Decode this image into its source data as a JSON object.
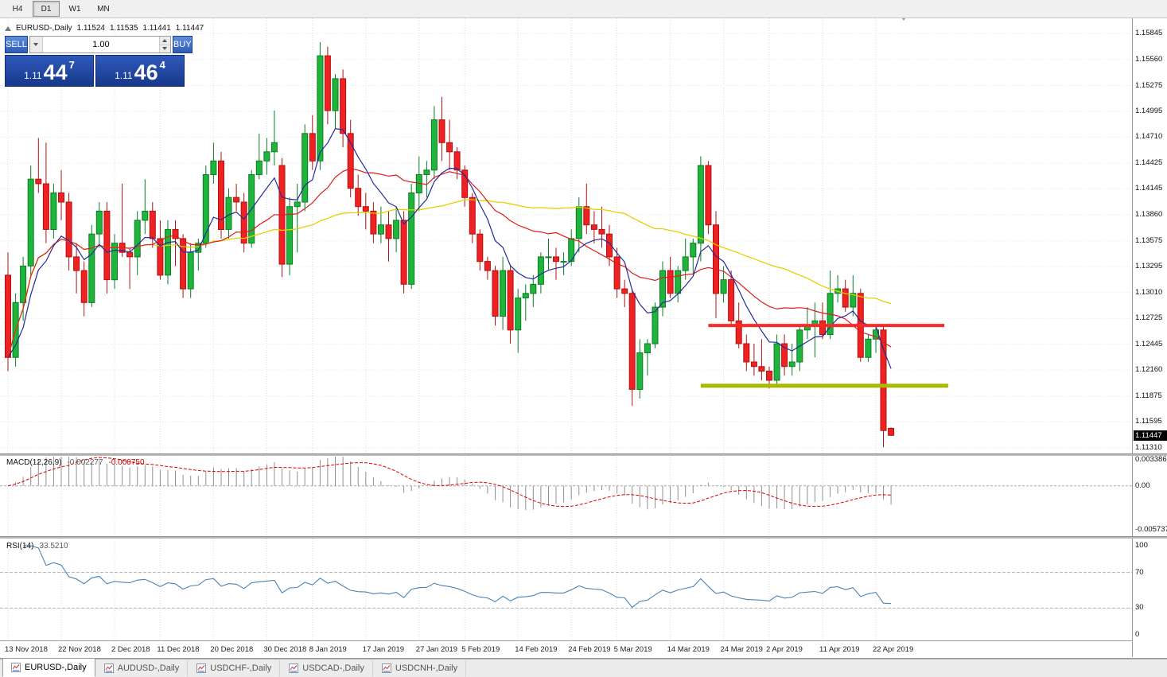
{
  "toolbar": {
    "timeframes": [
      {
        "label": "H4",
        "active": false
      },
      {
        "label": "D1",
        "active": true
      },
      {
        "label": "W1",
        "active": false
      },
      {
        "label": "MN",
        "active": false
      }
    ]
  },
  "header": {
    "symbol_title": "EURUSD-,Daily",
    "open": "1.11524",
    "high": "1.11535",
    "low": "1.11441",
    "close": "1.11447"
  },
  "trade_panel": {
    "sell_label": "SELL",
    "buy_label": "BUY",
    "volume": "1.00",
    "sell_price": {
      "prefix": "1.11",
      "big": "44",
      "sup": "7"
    },
    "buy_price": {
      "prefix": "1.11",
      "big": "46",
      "sup": "4"
    }
  },
  "icons": {
    "collapse": "triangle-up",
    "volume_dropdown": "triangle-down",
    "spin_up": "triangle-up",
    "spin_down": "triangle-down",
    "chart_shift": "triangle-down",
    "tab_icon": "mini-chart"
  },
  "price_scale": {
    "labels": [
      "1.15845",
      "1.15560",
      "1.15275",
      "1.14995",
      "1.14710",
      "1.14425",
      "1.14145",
      "1.13860",
      "1.13575",
      "1.13295",
      "1.13010",
      "1.12725",
      "1.12445",
      "1.12160",
      "1.11875",
      "1.11595",
      "1.11310"
    ],
    "current_price": "1.11447"
  },
  "macd_panel": {
    "label": "MACD(12,26,9)",
    "value": "-0.002277",
    "signal_value": "-0.000750",
    "scale": [
      "0.003386",
      "0.00",
      "-0.005737"
    ]
  },
  "rsi_panel": {
    "label": "RSI(14)",
    "value": "33.5210",
    "scale": [
      "100",
      "70",
      "30",
      "0"
    ]
  },
  "time_axis": {
    "ticks": [
      {
        "label": "13 Nov 2018",
        "index": 0
      },
      {
        "label": "22 Nov 2018",
        "index": 7
      },
      {
        "label": "2 Dec 2018",
        "index": 14
      },
      {
        "label": "11 Dec 2018",
        "index": 20
      },
      {
        "label": "20 Dec 2018",
        "index": 27
      },
      {
        "label": "30 Dec 2018",
        "index": 34
      },
      {
        "label": "8 Jan 2019",
        "index": 40
      },
      {
        "label": "17 Jan 2019",
        "index": 47
      },
      {
        "label": "27 Jan 2019",
        "index": 54
      },
      {
        "label": "5 Feb 2019",
        "index": 60
      },
      {
        "label": "14 Feb 2019",
        "index": 67
      },
      {
        "label": "24 Feb 2019",
        "index": 74
      },
      {
        "label": "5 Mar 2019",
        "index": 80
      },
      {
        "label": "14 Mar 2019",
        "index": 87
      },
      {
        "label": "24 Mar 2019",
        "index": 94
      },
      {
        "label": "2 Apr 2019",
        "index": 100
      },
      {
        "label": "11 Apr 2019",
        "index": 107
      },
      {
        "label": "22 Apr 2019",
        "index": 114
      }
    ]
  },
  "tabs": [
    {
      "label": "EURUSD-,Daily",
      "active": true
    },
    {
      "label": "AUDUSD-,Daily",
      "active": false
    },
    {
      "label": "USDCHF-,Daily",
      "active": false
    },
    {
      "label": "USDCAD-,Daily",
      "active": false
    },
    {
      "label": "USDCNH-,Daily",
      "active": false
    }
  ],
  "colors": {
    "up_fill": "#1fb53c",
    "up_stroke": "#0b7d22",
    "down_fill": "#ee2222",
    "down_stroke": "#b31111",
    "ma_fast": "#232a9c",
    "ma_mid": "#dd1d1d",
    "ma_slow": "#e8cf00",
    "macd_hist": "#909090",
    "macd_signal": "#dd0000",
    "rsi_line": "#4a82b4",
    "grid": "#dcdcdc",
    "hgrid": "#e6e6e6",
    "level_dash": "#b4b4b4",
    "trade_blue": "#3566c4",
    "trade_dark_blue": "#1c3f9c",
    "support_resistance_red": "#ff2626",
    "support_resistance_olive": "#a9b800",
    "tag_bg": "#000000"
  },
  "chart_data": {
    "type": "candlestick",
    "symbol": "EURUSD",
    "timeframe": "Daily",
    "y_axis": {
      "min": 1.1131,
      "max": 1.15845
    },
    "overlays": {
      "fast_ema": 8,
      "mid_sma": 20,
      "slow_sma": 50
    },
    "indicators": {
      "macd": {
        "fast": 12,
        "slow": 26,
        "signal": 9,
        "range": [
          -0.005737,
          0.003386
        ]
      },
      "rsi": {
        "period": 14,
        "levels": [
          70,
          30
        ],
        "range": [
          0,
          100
        ]
      }
    },
    "hlines": [
      {
        "price": 1.1265,
        "from_index": 92,
        "to_index": 123,
        "color": "#ff2626",
        "width": 4
      },
      {
        "price": 1.1199,
        "from_index": 91,
        "to_index": 123.5,
        "color": "#a9b800",
        "width": 5
      }
    ],
    "candles": [
      [
        1.132,
        1.1345,
        1.1215,
        1.123
      ],
      [
        1.123,
        1.13,
        1.122,
        1.129
      ],
      [
        1.129,
        1.134,
        1.127,
        1.133
      ],
      [
        1.133,
        1.144,
        1.132,
        1.1425
      ],
      [
        1.1425,
        1.147,
        1.141,
        1.142
      ],
      [
        1.142,
        1.1465,
        1.1355,
        1.137
      ],
      [
        1.137,
        1.142,
        1.136,
        1.141
      ],
      [
        1.141,
        1.1435,
        1.138,
        1.14
      ],
      [
        1.14,
        1.141,
        1.1325,
        1.134
      ],
      [
        1.134,
        1.1355,
        1.13,
        1.1325
      ],
      [
        1.1325,
        1.1335,
        1.1275,
        1.129
      ],
      [
        1.129,
        1.1375,
        1.1285,
        1.1365
      ],
      [
        1.1365,
        1.14,
        1.135,
        1.139
      ],
      [
        1.139,
        1.14,
        1.13,
        1.1315
      ],
      [
        1.1315,
        1.1365,
        1.1305,
        1.1355
      ],
      [
        1.1355,
        1.142,
        1.134,
        1.1345
      ],
      [
        1.1345,
        1.135,
        1.1305,
        1.134
      ],
      [
        1.134,
        1.139,
        1.132,
        1.138
      ],
      [
        1.138,
        1.1425,
        1.1365,
        1.139
      ],
      [
        1.139,
        1.14,
        1.135,
        1.136
      ],
      [
        1.136,
        1.138,
        1.1315,
        1.132
      ],
      [
        1.132,
        1.138,
        1.131,
        1.137
      ],
      [
        1.137,
        1.138,
        1.133,
        1.136
      ],
      [
        1.136,
        1.1365,
        1.1295,
        1.1305
      ],
      [
        1.1305,
        1.1355,
        1.1295,
        1.1345
      ],
      [
        1.1345,
        1.136,
        1.1325,
        1.1355
      ],
      [
        1.1355,
        1.144,
        1.135,
        1.143
      ],
      [
        1.143,
        1.1465,
        1.142,
        1.1445
      ],
      [
        1.1445,
        1.1455,
        1.136,
        1.137
      ],
      [
        1.137,
        1.1415,
        1.136,
        1.1405
      ],
      [
        1.1405,
        1.142,
        1.139,
        1.14
      ],
      [
        1.14,
        1.141,
        1.1345,
        1.1355
      ],
      [
        1.1355,
        1.1435,
        1.135,
        1.143
      ],
      [
        1.143,
        1.1475,
        1.1425,
        1.1445
      ],
      [
        1.1445,
        1.147,
        1.143,
        1.1455
      ],
      [
        1.1455,
        1.15,
        1.144,
        1.1465
      ],
      [
        1.144,
        1.1448,
        1.1318,
        1.1332
      ],
      [
        1.1332,
        1.1405,
        1.132,
        1.1395
      ],
      [
        1.1395,
        1.142,
        1.1345,
        1.14
      ],
      [
        1.14,
        1.1485,
        1.139,
        1.1475
      ],
      [
        1.1475,
        1.1495,
        1.1435,
        1.1445
      ],
      [
        1.1445,
        1.1575,
        1.1435,
        1.156
      ],
      [
        1.156,
        1.157,
        1.1485,
        1.15
      ],
      [
        1.15,
        1.154,
        1.148,
        1.1535
      ],
      [
        1.1535,
        1.1545,
        1.146,
        1.1475
      ],
      [
        1.1475,
        1.149,
        1.1405,
        1.1415
      ],
      [
        1.1415,
        1.143,
        1.1385,
        1.1395
      ],
      [
        1.1395,
        1.141,
        1.137,
        1.139
      ],
      [
        1.139,
        1.14,
        1.1355,
        1.1365
      ],
      [
        1.1365,
        1.1395,
        1.1355,
        1.1375
      ],
      [
        1.1375,
        1.139,
        1.1335,
        1.136
      ],
      [
        1.136,
        1.1395,
        1.1345,
        1.138
      ],
      [
        1.138,
        1.139,
        1.13,
        1.131
      ],
      [
        1.131,
        1.142,
        1.1305,
        1.141
      ],
      [
        1.141,
        1.145,
        1.139,
        1.143
      ],
      [
        1.143,
        1.1445,
        1.1405,
        1.1435
      ],
      [
        1.1435,
        1.1505,
        1.1425,
        1.149
      ],
      [
        1.149,
        1.1515,
        1.1445,
        1.1465
      ],
      [
        1.1465,
        1.149,
        1.1435,
        1.1455
      ],
      [
        1.1455,
        1.146,
        1.1425,
        1.1435
      ],
      [
        1.1435,
        1.144,
        1.1395,
        1.1405
      ],
      [
        1.1405,
        1.141,
        1.1355,
        1.1365
      ],
      [
        1.1365,
        1.137,
        1.1325,
        1.1335
      ],
      [
        1.1335,
        1.134,
        1.1315,
        1.1325
      ],
      [
        1.1325,
        1.133,
        1.1265,
        1.1275
      ],
      [
        1.1275,
        1.134,
        1.126,
        1.1325
      ],
      [
        1.1325,
        1.133,
        1.1245,
        1.126
      ],
      [
        1.126,
        1.1305,
        1.1235,
        1.1295
      ],
      [
        1.1295,
        1.131,
        1.127,
        1.13
      ],
      [
        1.13,
        1.132,
        1.1285,
        1.131
      ],
      [
        1.131,
        1.1345,
        1.13,
        1.134
      ],
      [
        1.134,
        1.136,
        1.1325,
        1.134
      ],
      [
        1.134,
        1.135,
        1.1315,
        1.1335
      ],
      [
        1.1335,
        1.1345,
        1.132,
        1.1335
      ],
      [
        1.1335,
        1.137,
        1.133,
        1.136
      ],
      [
        1.136,
        1.1405,
        1.1345,
        1.1395
      ],
      [
        1.1395,
        1.142,
        1.1365,
        1.1375
      ],
      [
        1.1375,
        1.139,
        1.1355,
        1.137
      ],
      [
        1.137,
        1.1395,
        1.135,
        1.1365
      ],
      [
        1.1365,
        1.1375,
        1.133,
        1.134
      ],
      [
        1.134,
        1.135,
        1.1295,
        1.1305
      ],
      [
        1.1305,
        1.1315,
        1.1285,
        1.13
      ],
      [
        1.13,
        1.1305,
        1.1177,
        1.1195
      ],
      [
        1.1195,
        1.125,
        1.1185,
        1.1235
      ],
      [
        1.1235,
        1.125,
        1.121,
        1.1245
      ],
      [
        1.1245,
        1.129,
        1.124,
        1.1285
      ],
      [
        1.1285,
        1.1335,
        1.1275,
        1.1325
      ],
      [
        1.1325,
        1.134,
        1.1295,
        1.13
      ],
      [
        1.13,
        1.133,
        1.129,
        1.1325
      ],
      [
        1.1325,
        1.136,
        1.1315,
        1.134
      ],
      [
        1.134,
        1.136,
        1.132,
        1.1355
      ],
      [
        1.1355,
        1.145,
        1.1335,
        1.144
      ],
      [
        1.144,
        1.1445,
        1.1365,
        1.1375
      ],
      [
        1.1375,
        1.139,
        1.1273,
        1.13
      ],
      [
        1.13,
        1.133,
        1.129,
        1.1315
      ],
      [
        1.1315,
        1.1325,
        1.1265,
        1.127
      ],
      [
        1.127,
        1.129,
        1.124,
        1.1245
      ],
      [
        1.1245,
        1.1255,
        1.1215,
        1.1225
      ],
      [
        1.1225,
        1.1245,
        1.121,
        1.122
      ],
      [
        1.122,
        1.125,
        1.1205,
        1.1215
      ],
      [
        1.1215,
        1.122,
        1.1196,
        1.1205
      ],
      [
        1.1205,
        1.1255,
        1.12,
        1.1245
      ],
      [
        1.1245,
        1.1255,
        1.121,
        1.122
      ],
      [
        1.122,
        1.1245,
        1.121,
        1.1225
      ],
      [
        1.1225,
        1.1265,
        1.1215,
        1.126
      ],
      [
        1.126,
        1.1285,
        1.125,
        1.1265
      ],
      [
        1.1265,
        1.129,
        1.123,
        1.127
      ],
      [
        1.127,
        1.129,
        1.125,
        1.1255
      ],
      [
        1.1255,
        1.1325,
        1.125,
        1.13
      ],
      [
        1.13,
        1.132,
        1.129,
        1.1305
      ],
      [
        1.1305,
        1.1315,
        1.128,
        1.1285
      ],
      [
        1.1285,
        1.132,
        1.1275,
        1.13
      ],
      [
        1.13,
        1.1305,
        1.1225,
        1.123
      ],
      [
        1.123,
        1.1255,
        1.1225,
        1.125
      ],
      [
        1.125,
        1.1265,
        1.1235,
        1.126
      ],
      [
        1.126,
        1.1265,
        1.1132,
        1.115
      ],
      [
        1.11524,
        1.11535,
        1.11441,
        1.11447
      ]
    ]
  }
}
